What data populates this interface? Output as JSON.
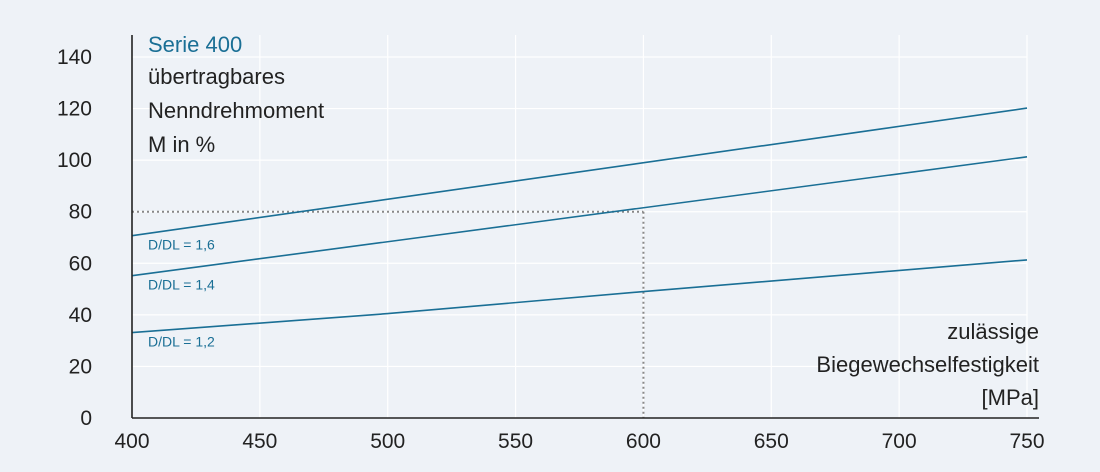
{
  "chart_data": {
    "type": "line",
    "title": "Serie 400",
    "ylabel_lines": [
      "übertragbares",
      "Nenndrehmoment",
      "M in %"
    ],
    "xlabel_lines": [
      "zulässige",
      "Biegewechselfestigkeit",
      "[MPa]"
    ],
    "xlim": [
      400,
      750
    ],
    "ylim": [
      0,
      140
    ],
    "xticks": [
      400,
      450,
      500,
      550,
      600,
      650,
      700,
      750
    ],
    "yticks": [
      0,
      20,
      40,
      60,
      80,
      100,
      120,
      140
    ],
    "grid": true,
    "series": [
      {
        "name": "D/DL = 1,6",
        "x": [
          400,
          750
        ],
        "y": [
          70.7,
          120.2
        ]
      },
      {
        "name": "D/DL = 1,4",
        "x": [
          400,
          750
        ],
        "y": [
          55.2,
          101.3
        ]
      },
      {
        "name": "D/DL = 1,2",
        "x": [
          400,
          500,
          600,
          750
        ],
        "y": [
          33.1,
          40.5,
          49.0,
          61.3
        ]
      }
    ],
    "reference": {
      "x": 600,
      "y": 80
    }
  },
  "colors": {
    "background": "#eef2f7",
    "line": "#1a6f95",
    "accent_text": "#1a6f95",
    "grid": "#ffffff",
    "axis": "#222222",
    "reference_line": "#888888"
  }
}
